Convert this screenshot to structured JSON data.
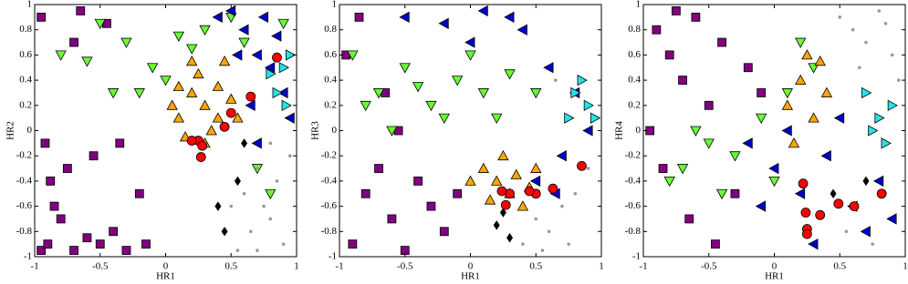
{
  "chart_data": [
    {
      "type": "scatter",
      "xlabel": "HR1",
      "ylabel": "HR2",
      "xlim": [
        -1,
        1
      ],
      "ylim": [
        -1,
        1
      ],
      "xticks": [
        -1,
        -0.5,
        0,
        0.5,
        1
      ],
      "yticks": [
        -1,
        -0.8,
        -0.6,
        -0.4,
        -0.2,
        0,
        0.2,
        0.4,
        0.6,
        0.8,
        1
      ],
      "series": [
        {
          "color": "#800080",
          "marker": "square",
          "x": [
            -0.95,
            -0.9,
            -0.8,
            -0.7,
            -0.6,
            -0.85,
            -0.75,
            -0.5,
            -0.4,
            -0.3,
            -0.95,
            -0.65,
            -0.2,
            -0.55,
            -0.88,
            -0.45,
            -0.7,
            -0.15,
            -0.35,
            -0.92
          ],
          "y": [
            -0.95,
            -0.9,
            -0.7,
            -0.95,
            -0.85,
            -0.6,
            -0.3,
            -0.9,
            -0.8,
            -0.95,
            0.9,
            0.95,
            -0.5,
            -0.2,
            -0.4,
            0.85,
            0.7,
            -0.9,
            -0.1,
            -0.1
          ]
        },
        {
          "color": "#66ff33",
          "marker": "triangle-down",
          "x": [
            -0.3,
            -0.1,
            0.1,
            0,
            -0.5,
            -0.2,
            0.3,
            0.6,
            0.7,
            0.8,
            -0.6,
            -0.4,
            0.5,
            0.9,
            0.2,
            -0.8
          ],
          "y": [
            0.7,
            0.5,
            0.75,
            0.4,
            0.85,
            0.3,
            0.8,
            0.7,
            -0.3,
            -0.5,
            0.55,
            0.3,
            0.9,
            0.85,
            0.65,
            0.6
          ]
        },
        {
          "color": "#ffa500",
          "marker": "triangle-up",
          "x": [
            0.1,
            0.2,
            0.3,
            0.25,
            0.4,
            0.15,
            0.35,
            0.5,
            0.05,
            0.45,
            0.2,
            0.3,
            0.55,
            0.1,
            0.4
          ],
          "y": [
            0.1,
            0.3,
            0.2,
            0.45,
            0.35,
            -0.05,
            0,
            0.25,
            0.2,
            0.55,
            0.55,
            -0.1,
            0.1,
            0.35,
            0.1
          ]
        },
        {
          "color": "#0000cc",
          "marker": "triangle-left",
          "x": [
            0.6,
            0.7,
            0.8,
            0.5,
            0.9,
            0.65,
            0.75,
            0.85,
            0.95,
            0.55,
            0.4,
            0.7
          ],
          "y": [
            0.8,
            0.6,
            0.5,
            0.95,
            0.3,
            0.2,
            0.9,
            0.75,
            0.1,
            0.6,
            0.9,
            -0.1
          ]
        },
        {
          "color": "#22e5e5",
          "marker": "triangle-right",
          "x": [
            0.9,
            0.85,
            0.95,
            0.8,
            0.92
          ],
          "y": [
            0.5,
            0.3,
            0.6,
            0.45,
            0.2
          ]
        },
        {
          "color": "#999999",
          "marker": "dot",
          "x": [
            0.6,
            0.7,
            0.8,
            0.9,
            0.65,
            0.75,
            0.85,
            0.5,
            0.95,
            0.55,
            0.7,
            0.8
          ],
          "y": [
            -0.5,
            -0.3,
            -0.7,
            -0.9,
            -0.8,
            -0.6,
            -0.4,
            -0.6,
            -0.2,
            -0.95,
            -0.95,
            -0.1
          ]
        },
        {
          "color": "#000000",
          "marker": "diamond",
          "x": [
            0.4,
            0.45,
            0.6,
            0.55
          ],
          "y": [
            -0.6,
            -0.8,
            -0.1,
            -0.4
          ]
        },
        {
          "color": "#ff0000",
          "marker": "circle",
          "x": [
            0.85,
            0.65,
            0.5,
            0.45,
            0.25,
            0.28,
            0.2,
            0.27
          ],
          "y": [
            0.58,
            0.27,
            0.14,
            0.03,
            -0.08,
            -0.12,
            -0.08,
            -0.21
          ]
        }
      ]
    },
    {
      "type": "scatter",
      "xlabel": "HR1",
      "ylabel": "HR3",
      "xlim": [
        -1,
        1
      ],
      "ylim": [
        -1,
        1
      ],
      "xticks": [
        -1,
        -0.5,
        0,
        0.5,
        1
      ],
      "yticks": [
        -1,
        -0.8,
        -0.6,
        -0.4,
        -0.2,
        0,
        0.2,
        0.4,
        0.6,
        0.8,
        1
      ],
      "series": [
        {
          "color": "#800080",
          "marker": "square",
          "x": [
            -0.9,
            -0.8,
            -0.6,
            -0.7,
            -0.5,
            -0.3,
            -0.85,
            -0.4,
            -0.2,
            -0.65,
            -0.95,
            -0.1,
            -0.55
          ],
          "y": [
            -0.9,
            -0.5,
            -0.7,
            -0.3,
            -0.95,
            -0.6,
            0.9,
            -0.4,
            -0.8,
            0.3,
            0.6,
            -0.5,
            0
          ]
        },
        {
          "color": "#66ff33",
          "marker": "triangle-down",
          "x": [
            -0.9,
            -0.7,
            -0.5,
            -0.3,
            -0.1,
            0.1,
            0.2,
            -0.6,
            -0.2,
            0,
            -0.8,
            0.3,
            -0.4,
            0.5
          ],
          "y": [
            0.6,
            0.3,
            0.5,
            0.2,
            0.4,
            0.3,
            0.1,
            0,
            0.1,
            0.6,
            0.2,
            0.45,
            0.35,
            0.3
          ]
        },
        {
          "color": "#ffa500",
          "marker": "triangle-up",
          "x": [
            0.1,
            0.2,
            0.3,
            0.4,
            0.25,
            0.35,
            0.15,
            0.45,
            0.5,
            0
          ],
          "y": [
            -0.3,
            -0.4,
            -0.5,
            -0.6,
            -0.2,
            -0.35,
            -0.55,
            -0.45,
            -0.3,
            -0.4
          ]
        },
        {
          "color": "#0000cc",
          "marker": "triangle-left",
          "x": [
            -0.5,
            -0.2,
            0.1,
            0.4,
            0.6,
            0.8,
            0.7,
            0.5,
            0.9,
            0.3,
            0.65,
            0
          ],
          "y": [
            0.9,
            0.85,
            0.95,
            0.8,
            0.5,
            0.3,
            -0.2,
            -0.4,
            0,
            0.9,
            -0.5,
            0.7
          ]
        },
        {
          "color": "#22e5e5",
          "marker": "triangle-right",
          "x": [
            0.8,
            0.9,
            0.85,
            0.95,
            0.75
          ],
          "y": [
            0.3,
            0.2,
            0.4,
            0.1,
            0.1
          ]
        },
        {
          "color": "#999999",
          "marker": "dot",
          "x": [
            0.5,
            0.6,
            0.7,
            0.8,
            0.4,
            0.9,
            0.55,
            0.75,
            0.65
          ],
          "y": [
            -0.7,
            -0.8,
            -0.6,
            -0.5,
            -0.9,
            -0.3,
            -0.95,
            -0.9,
            0.4
          ]
        },
        {
          "color": "#000000",
          "marker": "diamond",
          "x": [
            0.2,
            0.3,
            0.25
          ],
          "y": [
            -0.75,
            -0.85,
            -0.65
          ]
        },
        {
          "color": "#ff0000",
          "marker": "circle",
          "x": [
            0.85,
            0.63,
            0.5,
            0.45,
            0.3,
            0.24,
            0.27
          ],
          "y": [
            -0.28,
            -0.46,
            -0.5,
            -0.48,
            -0.5,
            -0.48,
            -0.59
          ]
        }
      ]
    },
    {
      "type": "scatter",
      "xlabel": "HR1",
      "ylabel": "HR4",
      "xlim": [
        -1,
        1
      ],
      "ylim": [
        -1,
        1
      ],
      "xticks": [
        -1,
        -0.5,
        0,
        0.5,
        1
      ],
      "yticks": [
        -1,
        -0.8,
        -0.6,
        -0.4,
        -0.2,
        0,
        0.2,
        0.4,
        0.6,
        0.8,
        1
      ],
      "series": [
        {
          "color": "#800080",
          "marker": "square",
          "x": [
            -0.9,
            -0.8,
            -0.7,
            -0.6,
            -0.5,
            -0.4,
            -0.3,
            -0.2,
            -0.85,
            -0.65,
            -0.45,
            -0.95,
            -0.75,
            -0.1
          ],
          "y": [
            0.8,
            0.6,
            0.4,
            0.9,
            0.2,
            0.7,
            -0.5,
            0.5,
            -0.3,
            -0.7,
            -0.9,
            0,
            0.95,
            0.3
          ]
        },
        {
          "color": "#66ff33",
          "marker": "triangle-down",
          "x": [
            -0.7,
            -0.5,
            -0.3,
            -0.1,
            0.1,
            0.3,
            -0.8,
            -0.6,
            0,
            0.2,
            -0.4
          ],
          "y": [
            -0.3,
            -0.1,
            -0.2,
            0.1,
            0.3,
            0.5,
            -0.4,
            0,
            -0.4,
            0.7,
            -0.5
          ]
        },
        {
          "color": "#ffa500",
          "marker": "triangle-up",
          "x": [
            0.1,
            0.2,
            0.3,
            0.25,
            0.4,
            0.15,
            0.35
          ],
          "y": [
            0.2,
            0.4,
            0.1,
            0.6,
            0.3,
            -0.1,
            0.55
          ]
        },
        {
          "color": "#0000cc",
          "marker": "triangle-left",
          "x": [
            -0.2,
            0,
            0.2,
            0.4,
            0.6,
            0.8,
            0.1,
            0.5,
            0.7,
            0.9,
            0.3,
            -0.1
          ],
          "y": [
            -0.1,
            -0.3,
            -0.5,
            -0.2,
            -0.6,
            -0.4,
            0,
            0.1,
            -0.8,
            -0.7,
            -0.9,
            -0.6
          ]
        },
        {
          "color": "#22e5e5",
          "marker": "triangle-right",
          "x": [
            0.7,
            0.8,
            0.9,
            0.75,
            0.85
          ],
          "y": [
            0.3,
            0.1,
            0.2,
            0,
            -0.1
          ]
        },
        {
          "color": "#999999",
          "marker": "dot",
          "x": [
            0.5,
            0.6,
            0.7,
            0.8,
            0.9,
            0.95,
            0.65,
            0.85,
            0.75,
            0.55
          ],
          "y": [
            0.9,
            0.8,
            0.7,
            0.95,
            0.6,
            0.4,
            0.5,
            0.85,
            -0.9,
            -0.8
          ]
        },
        {
          "color": "#000000",
          "marker": "diamond",
          "x": [
            0.45,
            0.6,
            0.7
          ],
          "y": [
            -0.5,
            -0.6,
            -0.4
          ]
        },
        {
          "color": "#ff0000",
          "marker": "circle",
          "x": [
            0.82,
            0.61,
            0.49,
            0.35,
            0.24,
            0.25,
            0.22,
            0.25
          ],
          "y": [
            -0.5,
            -0.6,
            -0.58,
            -0.67,
            -0.65,
            -0.78,
            -0.42,
            -0.82
          ]
        }
      ]
    }
  ]
}
